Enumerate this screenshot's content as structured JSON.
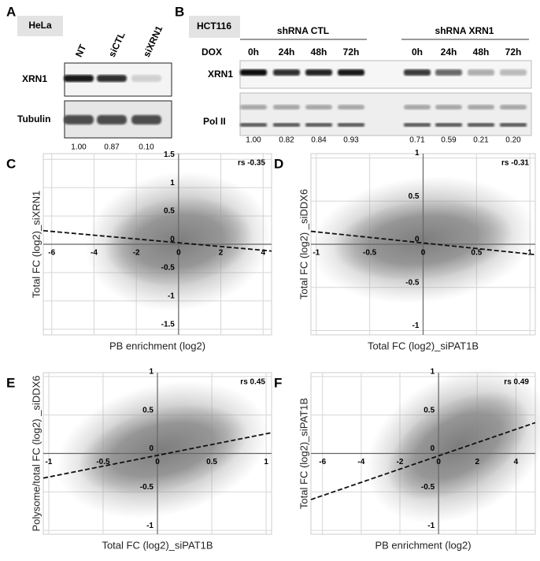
{
  "panel_a": {
    "label": "A",
    "cell_line": "HeLa",
    "lanes": [
      "NT",
      "siCTL",
      "siXRN1"
    ],
    "rows": [
      "XRN1",
      "Tubulin"
    ],
    "quantification": [
      "1.00",
      "0.87",
      "0.10"
    ]
  },
  "panel_b": {
    "label": "B",
    "cell_line": "HCT116",
    "groups": [
      "shRNA CTL",
      "shRNA XRN1"
    ],
    "dox_label": "DOX",
    "timepoints": [
      "0h",
      "24h",
      "48h",
      "72h",
      "0h",
      "24h",
      "48h",
      "72h"
    ],
    "rows": [
      "XRN1",
      "Pol II"
    ],
    "quantification": [
      "1.00",
      "0.82",
      "0.84",
      "0.93",
      "0.71",
      "0.59",
      "0.21",
      "0.20"
    ]
  },
  "scatter_panels": [
    {
      "label": "C",
      "type": "scatter",
      "xlabel": "PB enrichment (log2)",
      "ylabel": "Total FC (log2)_siXRN1",
      "annotation": "rs -0.35",
      "xlim": [
        -6.4,
        4.4
      ],
      "ylim": [
        -1.6,
        1.6
      ],
      "xticks": [
        -6,
        -4,
        -2,
        0,
        2,
        4
      ],
      "yticks": [
        -1.5,
        -1,
        -0.5,
        0,
        0.5,
        1,
        1.5
      ],
      "trend_x": [
        -6.4,
        4.4
      ],
      "trend_y": [
        0.24,
        -0.12
      ]
    },
    {
      "label": "D",
      "type": "scatter",
      "xlabel": "Total FC (log2)_siPAT1B",
      "ylabel": "Total FC (log2) _siDDX6",
      "annotation": "rs -0.31",
      "xlim": [
        -1.05,
        1.05
      ],
      "ylim": [
        -1.05,
        1.05
      ],
      "xticks": [
        -1,
        -0.5,
        0,
        0.5,
        1
      ],
      "yticks": [
        -1,
        -0.5,
        0,
        0.5,
        1
      ],
      "trend_x": [
        -1.05,
        1.05
      ],
      "trend_y": [
        0.15,
        -0.12
      ]
    },
    {
      "label": "E",
      "type": "scatter",
      "xlabel": "Total FC (log2)_siPAT1B",
      "ylabel": "Polysome/total FC (log2) _siDDX6",
      "annotation": "rs 0.45",
      "xlim": [
        -1.05,
        1.05
      ],
      "ylim": [
        -1.05,
        1.05
      ],
      "xticks": [
        -1,
        -0.5,
        0,
        0.5,
        1
      ],
      "yticks": [
        -1,
        -0.5,
        0,
        0.5,
        1
      ],
      "trend_x": [
        -1.05,
        1.05
      ],
      "trend_y": [
        -0.32,
        0.27
      ]
    },
    {
      "label": "F",
      "type": "scatter",
      "xlabel": "PB enrichment (log2)",
      "ylabel": "Total FC (log2)_siPAT1B",
      "annotation": "rs 0.49",
      "xlim": [
        -6.6,
        5
      ],
      "ylim": [
        -1.05,
        1.05
      ],
      "xticks": [
        -6,
        -4,
        -2,
        0,
        2,
        4
      ],
      "yticks": [
        -1,
        -0.5,
        0,
        0.5,
        1
      ],
      "trend_x": [
        -6.6,
        5
      ],
      "trend_y": [
        -0.6,
        0.4
      ]
    }
  ]
}
